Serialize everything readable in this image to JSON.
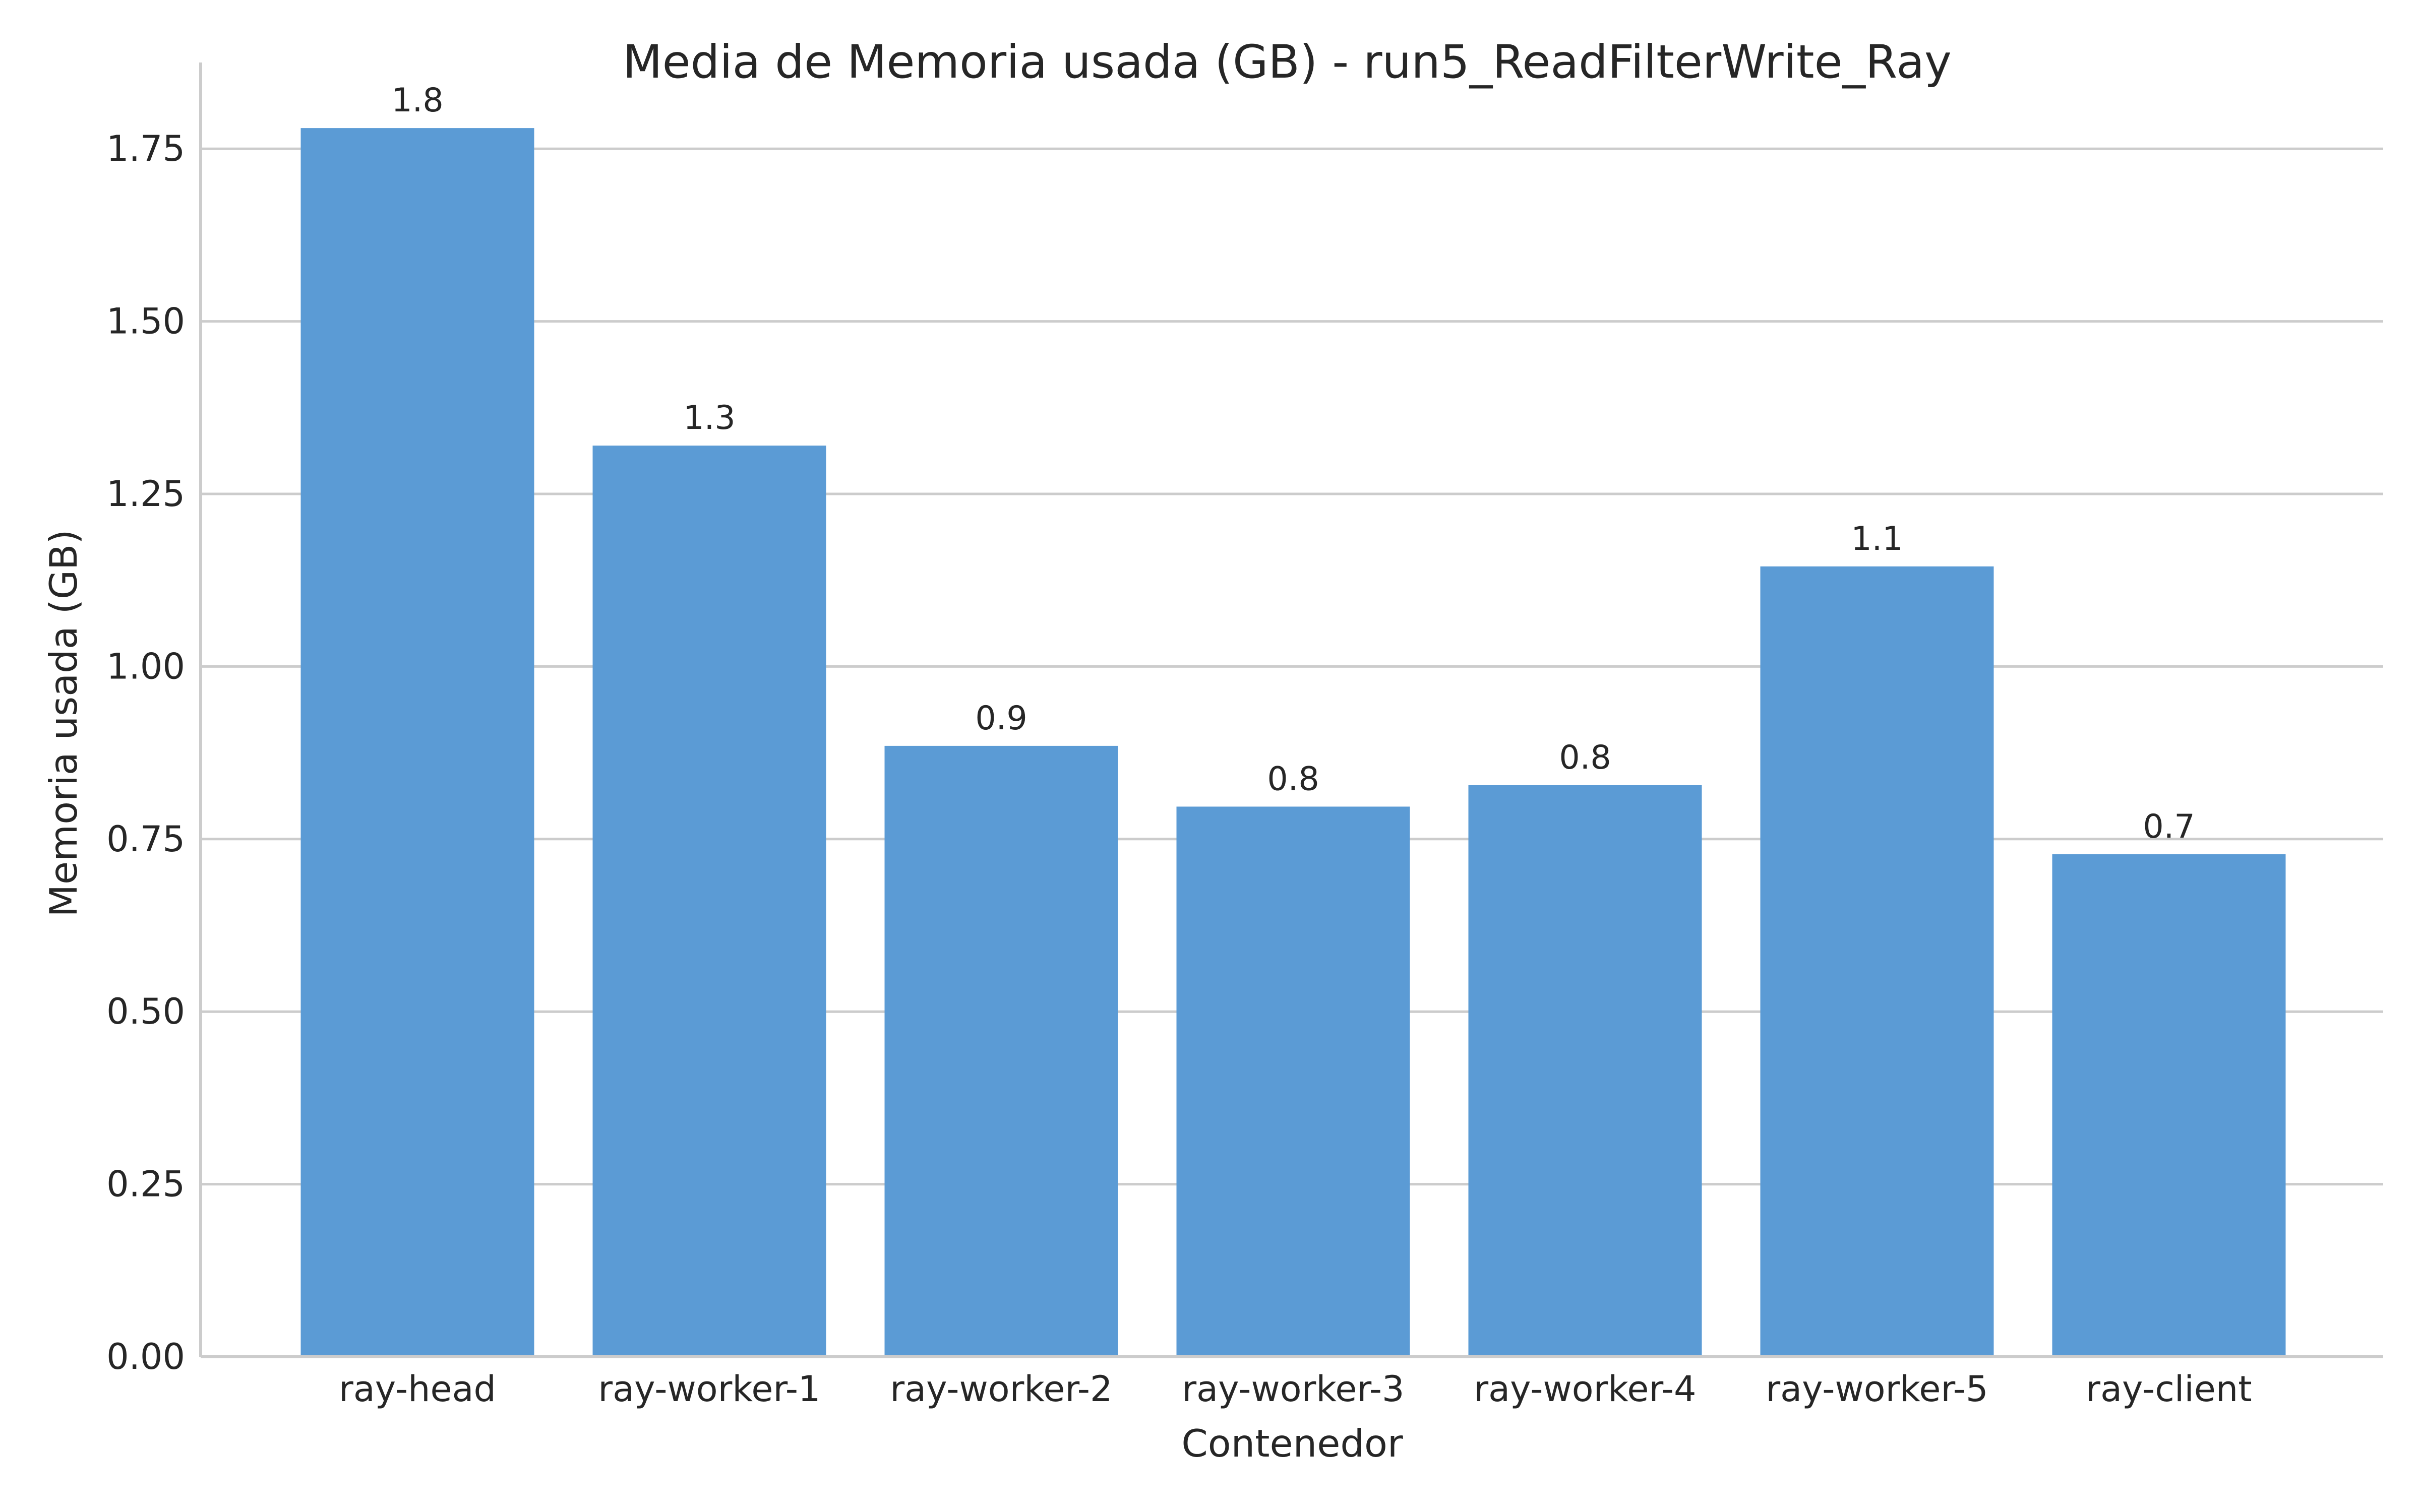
{
  "chart_data": {
    "type": "bar",
    "title": "Media de Memoria usada (GB) - run5_ReadFilterWrite_Ray",
    "xlabel": "Contenedor",
    "ylabel": "Memoria usada (GB)",
    "categories": [
      "ray-head",
      "ray-worker-1",
      "ray-worker-2",
      "ray-worker-3",
      "ray-worker-4",
      "ray-worker-5",
      "ray-client"
    ],
    "values": [
      1.78,
      1.32,
      0.885,
      0.797,
      0.828,
      1.145,
      0.728
    ],
    "value_labels": [
      "1.8",
      "1.3",
      "0.9",
      "0.8",
      "0.8",
      "1.1",
      "0.7"
    ],
    "y_ticks": [
      "0.00",
      "0.25",
      "0.50",
      "0.75",
      "1.00",
      "1.25",
      "1.50",
      "1.75"
    ],
    "ylim": [
      0,
      1.875
    ],
    "grid": "horizontal",
    "bar_color": "#5b9bd5",
    "grid_color": "#cccccc",
    "text_color": "#262626"
  }
}
